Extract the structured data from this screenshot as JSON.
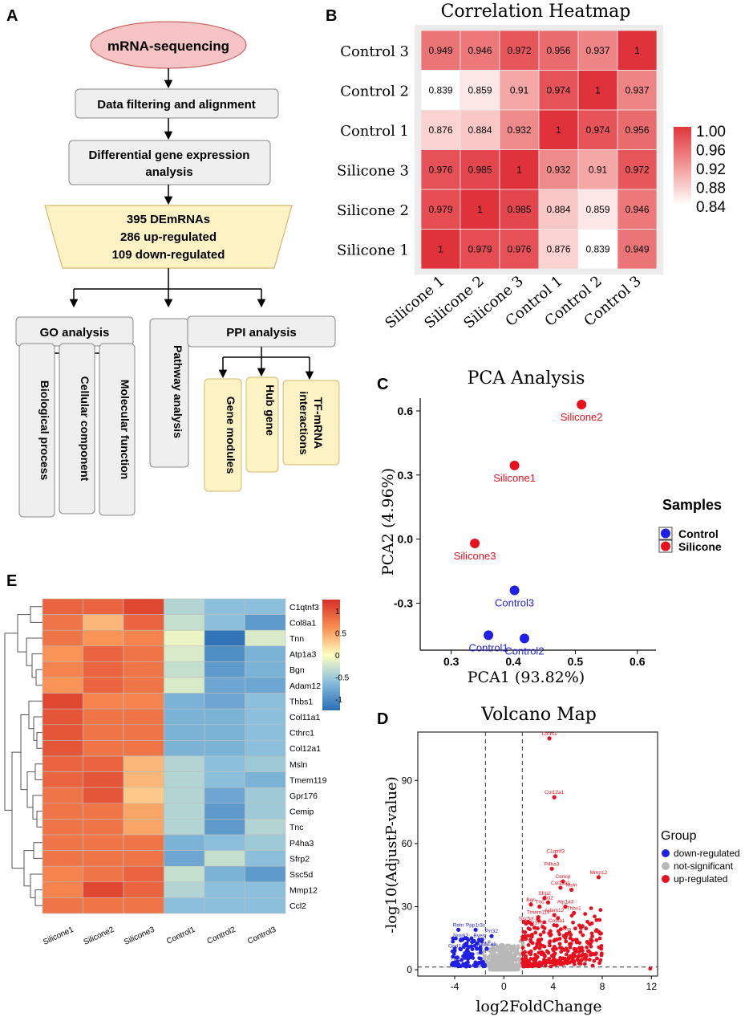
{
  "panel_letters": {
    "a": "A",
    "b": "B",
    "c": "C",
    "d": "D",
    "e": "E"
  },
  "colors": {
    "flow_box": "#efefef",
    "flow_highlight": "#fdf2c4",
    "flow_oval": "#f6c4c4",
    "red": "#e8101f",
    "blue": "#1f1fe6",
    "grey": "#b8b8b8"
  },
  "flowchart": {
    "start": "mRNA-sequencing",
    "step1": "Data filtering and alignment",
    "step2_line1": "Differential gene expression",
    "step2_line2": "analysis",
    "summary_line1": "395 DEmRNAs",
    "summary_line2": "286 up-regulated",
    "summary_line3": "109 down-regulated",
    "go": "GO analysis",
    "pathway": "Pathway analysis",
    "ppi": "PPI analysis",
    "go_items": [
      "Biological process",
      "Cellular component",
      "Molecular function"
    ],
    "ppi_items": [
      "Gene modules",
      "Hub gene"
    ],
    "tf_line1": "TF-mRNA",
    "tf_line2": "interactions"
  },
  "chart_data": [
    {
      "id": "correlation-heatmap",
      "type": "heatmap",
      "title": "Correlation Heatmap",
      "rows": [
        "Control 3",
        "Control 2",
        "Control 1",
        "Silicone 3",
        "Silicone 2",
        "Silicone 1"
      ],
      "columns": [
        "Silicone 1",
        "Silicone 2",
        "Silicone 3",
        "Control 1",
        "Control 2",
        "Control 3"
      ],
      "values": [
        [
          0.949,
          0.946,
          0.972,
          0.956,
          0.937,
          1
        ],
        [
          0.839,
          0.859,
          0.91,
          0.974,
          1,
          0.937
        ],
        [
          0.876,
          0.884,
          0.932,
          1,
          0.974,
          0.956
        ],
        [
          0.976,
          0.985,
          1,
          0.932,
          0.91,
          0.972
        ],
        [
          0.979,
          1,
          0.985,
          0.884,
          0.859,
          0.946
        ],
        [
          1,
          0.979,
          0.976,
          0.876,
          0.839,
          0.949
        ]
      ],
      "labels": [
        [
          "0.949",
          "0.946",
          "0.972",
          "0.956",
          "0.937",
          "1"
        ],
        [
          "0.839",
          "0.859",
          "0.91",
          "0.974",
          "1",
          "0.937"
        ],
        [
          "0.876",
          "0.884",
          "0.932",
          "1",
          "0.974",
          "0.956"
        ],
        [
          "0.976",
          "0.985",
          "1",
          "0.932",
          "0.91",
          "0.972"
        ],
        [
          "0.979",
          "1",
          "0.985",
          "0.884",
          "0.859",
          "0.946"
        ],
        [
          "1",
          "0.979",
          "0.976",
          "0.876",
          "0.839",
          "0.949"
        ]
      ],
      "scale": {
        "min": 0.84,
        "max": 1.0,
        "ticks": [
          "1.00",
          "0.96",
          "0.92",
          "0.88",
          "0.84"
        ]
      }
    },
    {
      "id": "pca",
      "type": "scatter",
      "title": "PCA Analysis",
      "xlabel": "PCA1 (93.82%)",
      "ylabel": "PCA2 (4.96%)",
      "xlim": [
        0.25,
        0.63
      ],
      "ylim": [
        -0.52,
        0.66
      ],
      "xticks": [
        "0.3",
        "0.4",
        "0.5",
        "0.6"
      ],
      "yticks": [
        "0.6",
        "0.3",
        "0.0",
        "-0.3"
      ],
      "legend_title": "Samples",
      "series": [
        {
          "name": "Control",
          "color": "#1f1fe6",
          "points": [
            {
              "label": "Control1",
              "x": 0.36,
              "y": -0.45
            },
            {
              "label": "Control2",
              "x": 0.418,
              "y": -0.465
            },
            {
              "label": "Control3",
              "x": 0.402,
              "y": -0.24
            }
          ]
        },
        {
          "name": "Silicone",
          "color": "#e8101f",
          "points": [
            {
              "label": "Silicone1",
              "x": 0.402,
              "y": 0.345
            },
            {
              "label": "Silicone2",
              "x": 0.51,
              "y": 0.63
            },
            {
              "label": "Silicone3",
              "x": 0.338,
              "y": -0.02
            }
          ]
        }
      ]
    },
    {
      "id": "volcano",
      "type": "scatter",
      "title": "Volcano Map",
      "xlabel": "log2FoldChange",
      "ylabel": "-log10(AdjustP-value)",
      "xlim": [
        -7,
        12.5
      ],
      "ylim": [
        -3,
        113
      ],
      "xticks": [
        "-4",
        "0",
        "4",
        "8",
        "12"
      ],
      "yticks": [
        "90",
        "60",
        "30",
        "0"
      ],
      "thresholds": {
        "fc": [
          -1.5,
          1.5
        ],
        "p": 1.3
      },
      "legend_title": "Group",
      "legend": [
        "down-regulated",
        "not-significant",
        "up-regulated"
      ],
      "labeled_up": [
        {
          "g": "Cthrc1",
          "x": 3.7,
          "y": 110
        },
        {
          "g": "Col12a1",
          "x": 4.1,
          "y": 82
        },
        {
          "g": "C1qtnf3",
          "x": 4.2,
          "y": 54
        },
        {
          "g": "P4ha3",
          "x": 3.9,
          "y": 48
        },
        {
          "g": "Cemip",
          "x": 4.8,
          "y": 42
        },
        {
          "g": "Mmp12",
          "x": 7.7,
          "y": 44
        },
        {
          "g": "Col11a1",
          "x": 4.6,
          "y": 39
        },
        {
          "g": "Msln",
          "x": 5.5,
          "y": 38
        },
        {
          "g": "Sfrp2",
          "x": 3.3,
          "y": 34
        },
        {
          "g": "Bgn",
          "x": 2.2,
          "y": 31
        },
        {
          "g": "Ccl2",
          "x": 3.6,
          "y": 32
        },
        {
          "g": "Atp1a3",
          "x": 5.0,
          "y": 30
        },
        {
          "g": "Tnc",
          "x": 2.9,
          "y": 30
        },
        {
          "g": "Thbs1",
          "x": 5.7,
          "y": 27
        },
        {
          "g": "Tmem119",
          "x": 2.8,
          "y": 25
        },
        {
          "g": "Adam12",
          "x": 4.1,
          "y": 26
        },
        {
          "g": "Ssc5d",
          "x": 1.8,
          "y": 22
        },
        {
          "g": "Gpr176",
          "x": 2.5,
          "y": 20
        },
        {
          "g": "Col8a1",
          "x": 4.3,
          "y": 21
        },
        {
          "g": "Tnn",
          "x": 5.1,
          "y": 17
        }
      ],
      "labeled_down": [
        {
          "g": "Retn",
          "x": -3.7,
          "y": 19
        },
        {
          "g": "Ppp1r3c",
          "x": -2.3,
          "y": 19
        },
        {
          "g": "Prr32",
          "x": -1.0,
          "y": 16
        },
        {
          "g": "Nmrk2",
          "x": -3.5,
          "y": 14
        },
        {
          "g": "Bves",
          "x": -2.0,
          "y": 14
        },
        {
          "g": "Gpd1",
          "x": -4.0,
          "y": 9
        },
        {
          "g": "Ank1",
          "x": -3.0,
          "y": 9
        },
        {
          "g": "Syp1",
          "x": -2.2,
          "y": 10
        },
        {
          "g": "Aldh1a1",
          "x": -1.4,
          "y": 10
        },
        {
          "g": "Thrsp",
          "x": -3.8,
          "y": 3
        }
      ]
    },
    {
      "id": "expression-heatmap",
      "type": "heatmap",
      "columns": [
        "Silicone1",
        "Silicone2",
        "Silicone3",
        "Control1",
        "Control2",
        "Control3"
      ],
      "rows": [
        "C1qtnf3",
        "Col8a1",
        "Tnn",
        "Atp1a3",
        "Bgn",
        "Adam12",
        "Thbs1",
        "Col11a1",
        "Cthrc1",
        "Col12a1",
        "Msln",
        "Tmem119",
        "Gpr176",
        "Cemip",
        "Tnc",
        "P4ha3",
        "Sfrp2",
        "Ssc5d",
        "Mmp12",
        "Ccl2"
      ],
      "values": [
        [
          0.9,
          0.9,
          1.1,
          -0.4,
          -0.6,
          -0.6
        ],
        [
          0.8,
          0.4,
          0.9,
          -0.3,
          -0.6,
          -0.9
        ],
        [
          0.8,
          0.6,
          0.7,
          -0.1,
          -1.2,
          -0.2
        ],
        [
          0.6,
          0.9,
          0.8,
          -0.2,
          -1.0,
          -0.7
        ],
        [
          0.7,
          0.9,
          0.8,
          -0.3,
          -0.9,
          -0.7
        ],
        [
          0.6,
          0.9,
          0.8,
          -0.2,
          -0.8,
          -0.8
        ],
        [
          1.1,
          0.7,
          0.7,
          -0.7,
          -0.8,
          -0.6
        ],
        [
          1.0,
          0.8,
          0.8,
          -0.7,
          -0.7,
          -0.6
        ],
        [
          1.0,
          0.8,
          0.8,
          -0.7,
          -0.7,
          -0.6
        ],
        [
          1.0,
          0.8,
          0.8,
          -0.7,
          -0.7,
          -0.6
        ],
        [
          0.9,
          0.9,
          0.4,
          -0.4,
          -0.6,
          -0.5
        ],
        [
          0.9,
          1.0,
          0.4,
          -0.4,
          -0.6,
          -0.7
        ],
        [
          0.8,
          1.0,
          0.3,
          -0.4,
          -0.8,
          -0.5
        ],
        [
          0.8,
          0.8,
          0.5,
          -0.4,
          -0.9,
          -0.5
        ],
        [
          0.8,
          0.8,
          0.5,
          -0.4,
          -0.9,
          -0.4
        ],
        [
          0.8,
          0.8,
          0.8,
          -0.7,
          -0.6,
          -0.5
        ],
        [
          0.8,
          0.8,
          0.8,
          -0.8,
          -0.3,
          -0.6
        ],
        [
          0.7,
          0.8,
          0.9,
          -0.3,
          -0.7,
          -0.9
        ],
        [
          0.7,
          1.1,
          0.9,
          -0.4,
          -0.6,
          -0.6
        ],
        [
          0.8,
          0.8,
          0.8,
          -0.6,
          -0.6,
          -0.6
        ]
      ],
      "scale": {
        "min": -1.25,
        "max": 1.25,
        "ticks": [
          "1",
          "0.5",
          "0",
          "-0.5",
          "-1"
        ]
      }
    }
  ]
}
